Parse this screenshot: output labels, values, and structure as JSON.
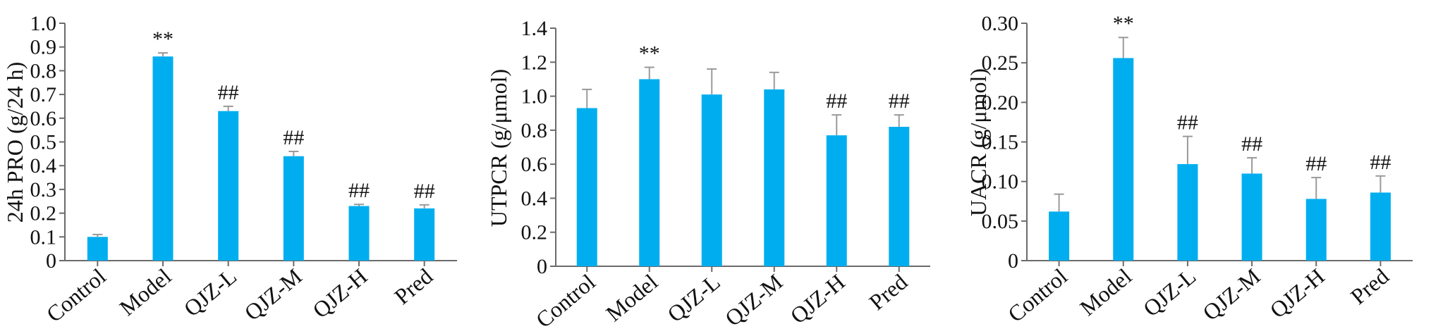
{
  "colors": {
    "bar": "#00AEEF",
    "error_bar": "#9a9a9a",
    "axis": "#6b6b6b"
  },
  "chart_data": [
    {
      "type": "bar",
      "ylabel": "24h PRO (g/24 h)",
      "ylim": [
        0,
        1.0
      ],
      "yticks": [
        "0",
        "0.1",
        "0.2",
        "0.3",
        "0.4",
        "0.5",
        "0.6",
        "0.7",
        "0.8",
        "0.9",
        "1.0"
      ],
      "categories": [
        "Control",
        "Model",
        "QJZ-L",
        "QJZ-M",
        "QJZ-H",
        "Pred"
      ],
      "values": [
        0.1,
        0.86,
        0.63,
        0.44,
        0.23,
        0.22
      ],
      "errors": [
        0.01,
        0.015,
        0.02,
        0.02,
        0.007,
        0.015
      ],
      "annotations": [
        "",
        "**",
        "##",
        "##",
        "##",
        "##"
      ]
    },
    {
      "type": "bar",
      "ylabel": "UTPCR (g/μmol)",
      "ylim": [
        0,
        1.4
      ],
      "yticks": [
        "0",
        "0.2",
        "0.4",
        "0.6",
        "0.8",
        "1.0",
        "1.2",
        "1.4"
      ],
      "categories": [
        "Control",
        "Model",
        "QJZ-L",
        "QJZ-M",
        "QJZ-H",
        "Pred"
      ],
      "values": [
        0.93,
        1.1,
        1.01,
        1.04,
        0.77,
        0.82
      ],
      "errors": [
        0.11,
        0.07,
        0.15,
        0.1,
        0.12,
        0.07
      ],
      "annotations": [
        "",
        "**",
        "",
        "",
        "##",
        "##"
      ]
    },
    {
      "type": "bar",
      "ylabel": "UACR (g/μmol)",
      "ylim": [
        0,
        0.3
      ],
      "yticks": [
        "0",
        "0.05",
        "0.10",
        "0.15",
        "0.20",
        "0.25",
        "0.30"
      ],
      "categories": [
        "Control",
        "Model",
        "QJZ-L",
        "QJZ-M",
        "QJZ-H",
        "Pred"
      ],
      "values": [
        0.062,
        0.256,
        0.122,
        0.11,
        0.078,
        0.086
      ],
      "errors": [
        0.022,
        0.026,
        0.035,
        0.02,
        0.027,
        0.021
      ],
      "annotations": [
        "",
        "**",
        "##",
        "##",
        "##",
        "##"
      ]
    }
  ]
}
